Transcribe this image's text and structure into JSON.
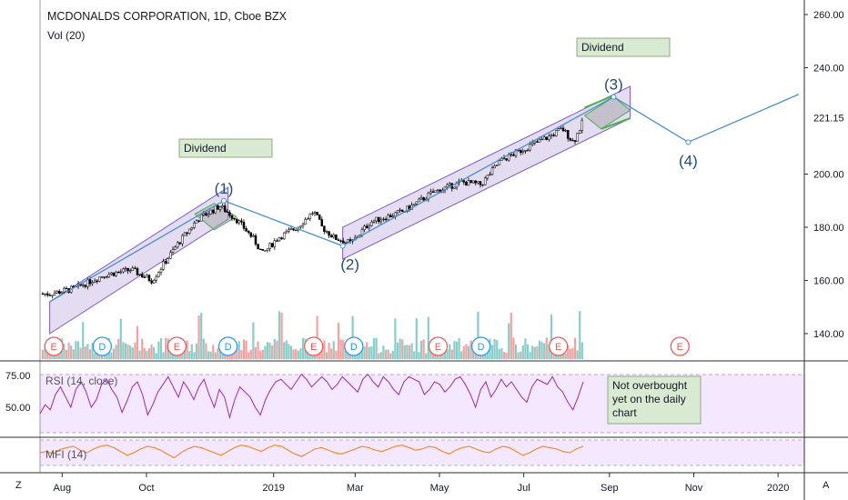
{
  "header": {
    "symbol_line": "MCDONALDS CORPORATION, 1D, Cboe BZX",
    "volume_line": "Vol (20)"
  },
  "corner": {
    "left": "Z",
    "right": "A"
  },
  "colors": {
    "up": "#26a69a",
    "down": "#ef5350",
    "candle_outline": "#000000",
    "channel_fill": "#b39ddb",
    "channel_line": "#7e57c2",
    "wave_line": "#4a90c8",
    "wave_label": "#1f4e79",
    "rsi_line": "#9c27b0",
    "mfi_line": "#f57c00",
    "note_bg": "#d9ead3",
    "note_border": "#93a983",
    "green_segment": "#4caf50"
  },
  "chart_data": [
    {
      "type": "candlestick",
      "title": "MCDONALDS CORPORATION, 1D, Cboe BZX",
      "x_axis": {
        "tick_labels": [
          "Aug",
          "Oct",
          "2019",
          "Mar",
          "May",
          "Jul",
          "Sep",
          "Nov",
          "2020"
        ]
      },
      "y_axis": {
        "ticks": [
          140.0,
          160.0,
          180.0,
          200.0,
          240.0,
          260.0
        ],
        "tick_labels": [
          "140.00",
          "160.00",
          "180.00",
          "200.00",
          "240.00",
          "260.00"
        ],
        "last_price_label": "221.15",
        "range": [
          133,
          262
        ],
        "scale": "linear",
        "position": "right"
      },
      "price_anchors": [
        {
          "date": "2018-07-23",
          "value": 155
        },
        {
          "date": "2018-08-10",
          "value": 157
        },
        {
          "date": "2018-08-31",
          "value": 162
        },
        {
          "date": "2018-09-20",
          "value": 164
        },
        {
          "date": "2018-10-05",
          "value": 160
        },
        {
          "date": "2018-10-24",
          "value": 174
        },
        {
          "date": "2018-11-07",
          "value": 183
        },
        {
          "date": "2018-11-23",
          "value": 188
        },
        {
          "date": "2018-12-05",
          "value": 183
        },
        {
          "date": "2018-12-17",
          "value": 176
        },
        {
          "date": "2018-12-24",
          "value": 170
        },
        {
          "date": "2019-01-04",
          "value": 176
        },
        {
          "date": "2019-01-18",
          "value": 180
        },
        {
          "date": "2019-01-30",
          "value": 186
        },
        {
          "date": "2019-02-05",
          "value": 180
        },
        {
          "date": "2019-02-14",
          "value": 176
        },
        {
          "date": "2019-02-26",
          "value": 174
        },
        {
          "date": "2019-03-12",
          "value": 182
        },
        {
          "date": "2019-04-05",
          "value": 186
        },
        {
          "date": "2019-04-26",
          "value": 193
        },
        {
          "date": "2019-05-17",
          "value": 197
        },
        {
          "date": "2019-05-31",
          "value": 196
        },
        {
          "date": "2019-06-14",
          "value": 205
        },
        {
          "date": "2019-07-03",
          "value": 210
        },
        {
          "date": "2019-07-19",
          "value": 214
        },
        {
          "date": "2019-07-29",
          "value": 217
        },
        {
          "date": "2019-08-06",
          "value": 212
        },
        {
          "date": "2019-08-13",
          "value": 220
        }
      ],
      "volume": {
        "label": "Vol (20)"
      },
      "events": [
        {
          "letter": "E",
          "date": "2018-07-26"
        },
        {
          "letter": "D",
          "date": "2018-08-30"
        },
        {
          "letter": "E",
          "date": "2018-10-23"
        },
        {
          "letter": "D",
          "date": "2018-11-29"
        },
        {
          "letter": "E",
          "date": "2019-01-30"
        },
        {
          "letter": "D",
          "date": "2019-02-28"
        },
        {
          "letter": "E",
          "date": "2019-04-30"
        },
        {
          "letter": "D",
          "date": "2019-05-31"
        },
        {
          "letter": "E",
          "date": "2019-07-26"
        },
        {
          "letter": "E",
          "date": "2019-10-22"
        }
      ],
      "annotations": [
        {
          "text": "Dividend",
          "date": "2018-11-26"
        },
        {
          "text": "Dividend",
          "date": "2019-08-27"
        }
      ],
      "wave_labels": [
        "(1)",
        "(2)",
        "(3)",
        "(4)"
      ],
      "wave_points": [
        {
          "label": "(1)",
          "date": "2018-11-26",
          "value": 190
        },
        {
          "label": "(2)",
          "date": "2019-02-20",
          "value": 173
        },
        {
          "label": "(3)",
          "date": "2019-09-04",
          "value": 229
        },
        {
          "label": "(4)",
          "date": "2019-10-28",
          "value": 212
        }
      ]
    },
    {
      "type": "line",
      "title": "RSI (14, close)",
      "y_axis": {
        "ticks": [
          75.0,
          50.0
        ],
        "tick_labels": [
          "75.00",
          "50.00"
        ]
      },
      "series": [
        {
          "name": "RSI (14, close)",
          "values": [
            45,
            52,
            48,
            60,
            66,
            58,
            50,
            64,
            70,
            62,
            50,
            56,
            68,
            72,
            64,
            58,
            46,
            55,
            66,
            70,
            60,
            44,
            52,
            62,
            68,
            74,
            66,
            58,
            70,
            64,
            56,
            66,
            72,
            60,
            50,
            64,
            58,
            42,
            56,
            66,
            62,
            58,
            50,
            44,
            56,
            64,
            70,
            72,
            68,
            64,
            70,
            76,
            72,
            66,
            70,
            74,
            70,
            64,
            68,
            74,
            70,
            66,
            62,
            72,
            76,
            70,
            66,
            74,
            70,
            64,
            60,
            70,
            74,
            72,
            70,
            60,
            64,
            70,
            68,
            62,
            66,
            72,
            74,
            68,
            60,
            50,
            64,
            70,
            58,
            64,
            72,
            66,
            70,
            64,
            58,
            54,
            66,
            72,
            70,
            68,
            74,
            66,
            62,
            54,
            48,
            58,
            70
          ]
        }
      ],
      "note": "Not overbought yet on the daily chart"
    },
    {
      "type": "line",
      "title": "MFI (14)",
      "series": [
        {
          "name": "MFI (14)",
          "values": [
            50,
            52,
            48,
            55,
            58,
            60,
            54,
            50,
            56,
            60,
            62,
            58,
            52,
            46,
            50,
            56,
            60,
            58,
            54,
            48,
            42,
            50,
            56,
            60,
            58,
            54,
            50,
            46,
            52,
            58,
            62,
            60,
            56,
            52,
            58,
            62,
            60,
            54,
            48,
            44,
            50,
            56,
            58,
            54,
            50,
            48,
            52,
            56,
            60,
            58,
            54,
            52,
            56,
            60,
            62,
            58,
            54,
            56,
            60,
            58,
            52,
            48,
            54,
            58,
            60,
            56,
            52,
            50,
            56,
            60,
            58,
            52,
            46,
            50,
            56,
            60,
            58,
            56,
            52,
            50,
            56,
            60
          ]
        }
      ]
    }
  ]
}
